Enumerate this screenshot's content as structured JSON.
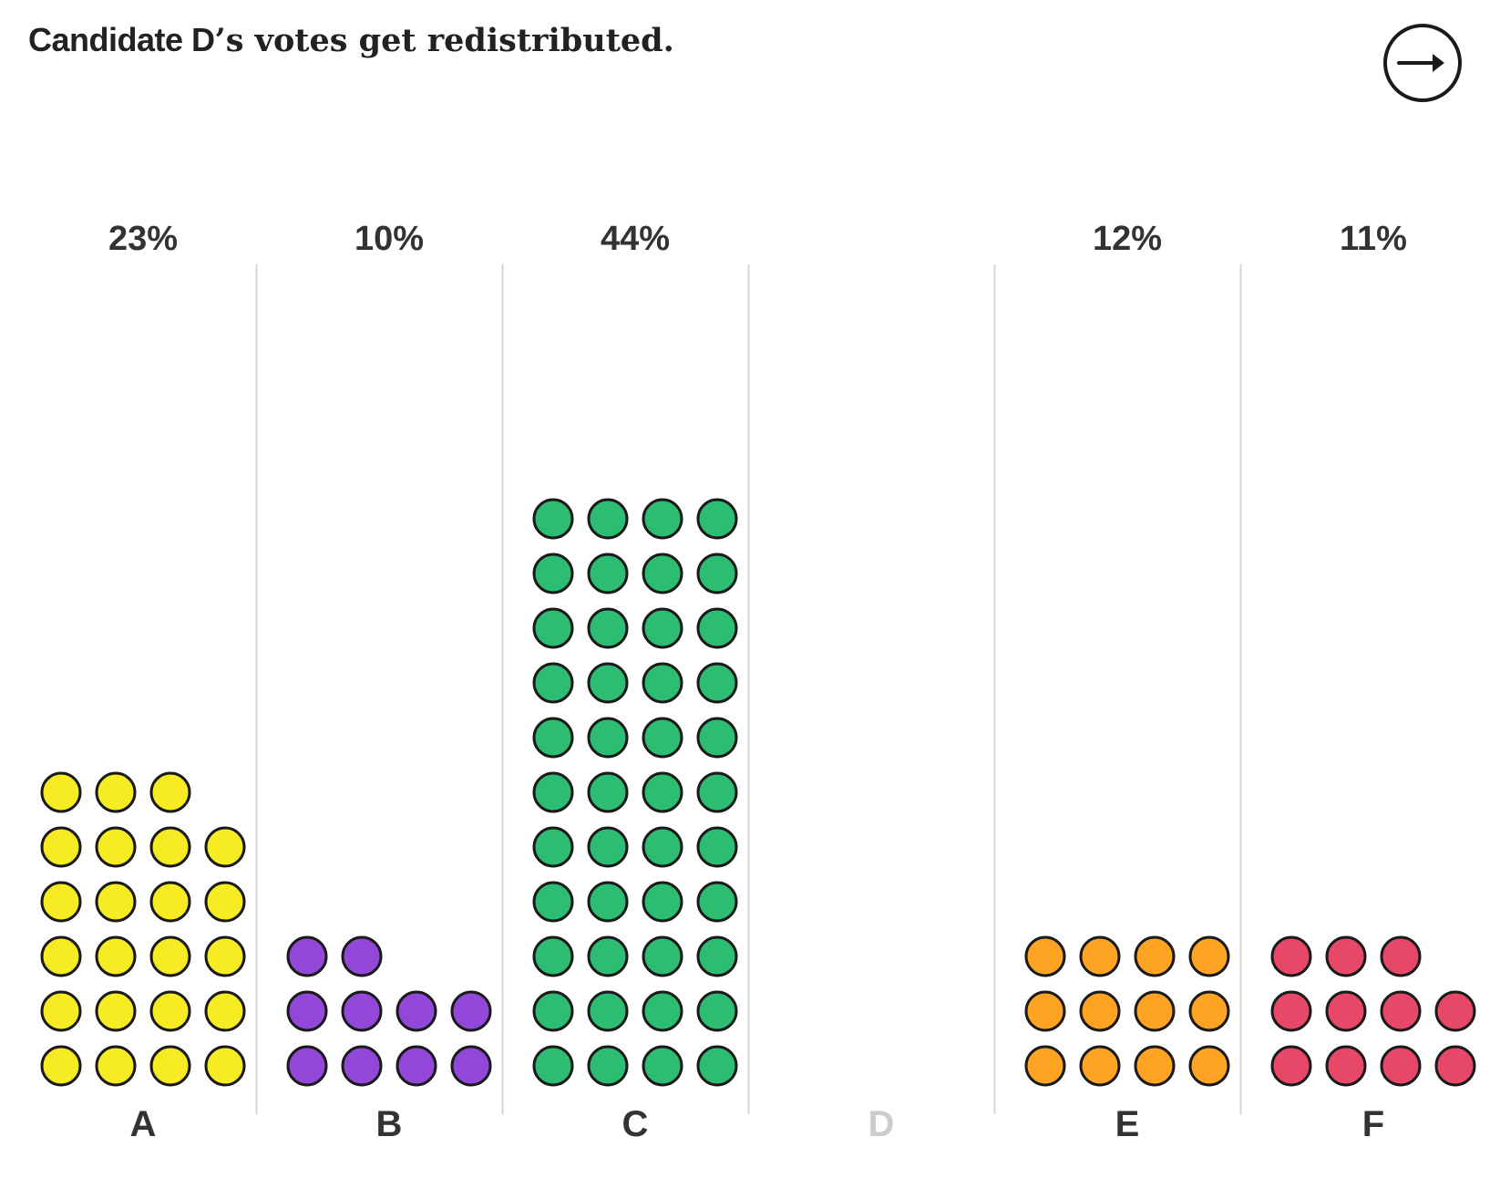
{
  "headline": {
    "strong": "Candidate D",
    "rest": "’s votes get redistributed."
  },
  "next_button": {
    "icon": "arrow-right-icon"
  },
  "colors": {
    "text": "#333333",
    "eliminated_label": "#cccccc",
    "divider": "#d4d4d4",
    "dot_stroke": "#1a1a1a"
  },
  "chart_data": {
    "type": "dot-column",
    "title": "",
    "dots_per_row": 4,
    "candidates": [
      {
        "name": "A",
        "percent_label": "23%",
        "dots": 23,
        "color": "#f7ec23",
        "eliminated": false
      },
      {
        "name": "B",
        "percent_label": "10%",
        "dots": 10,
        "color": "#9347d8",
        "eliminated": false
      },
      {
        "name": "C",
        "percent_label": "44%",
        "dots": 44,
        "color": "#2dbd72",
        "eliminated": false
      },
      {
        "name": "D",
        "percent_label": "",
        "dots": 0,
        "color": "#cccccc",
        "eliminated": true
      },
      {
        "name": "E",
        "percent_label": "12%",
        "dots": 12,
        "color": "#ffa322",
        "eliminated": false
      },
      {
        "name": "F",
        "percent_label": "11%",
        "dots": 11,
        "color": "#e84868",
        "eliminated": false
      }
    ]
  }
}
